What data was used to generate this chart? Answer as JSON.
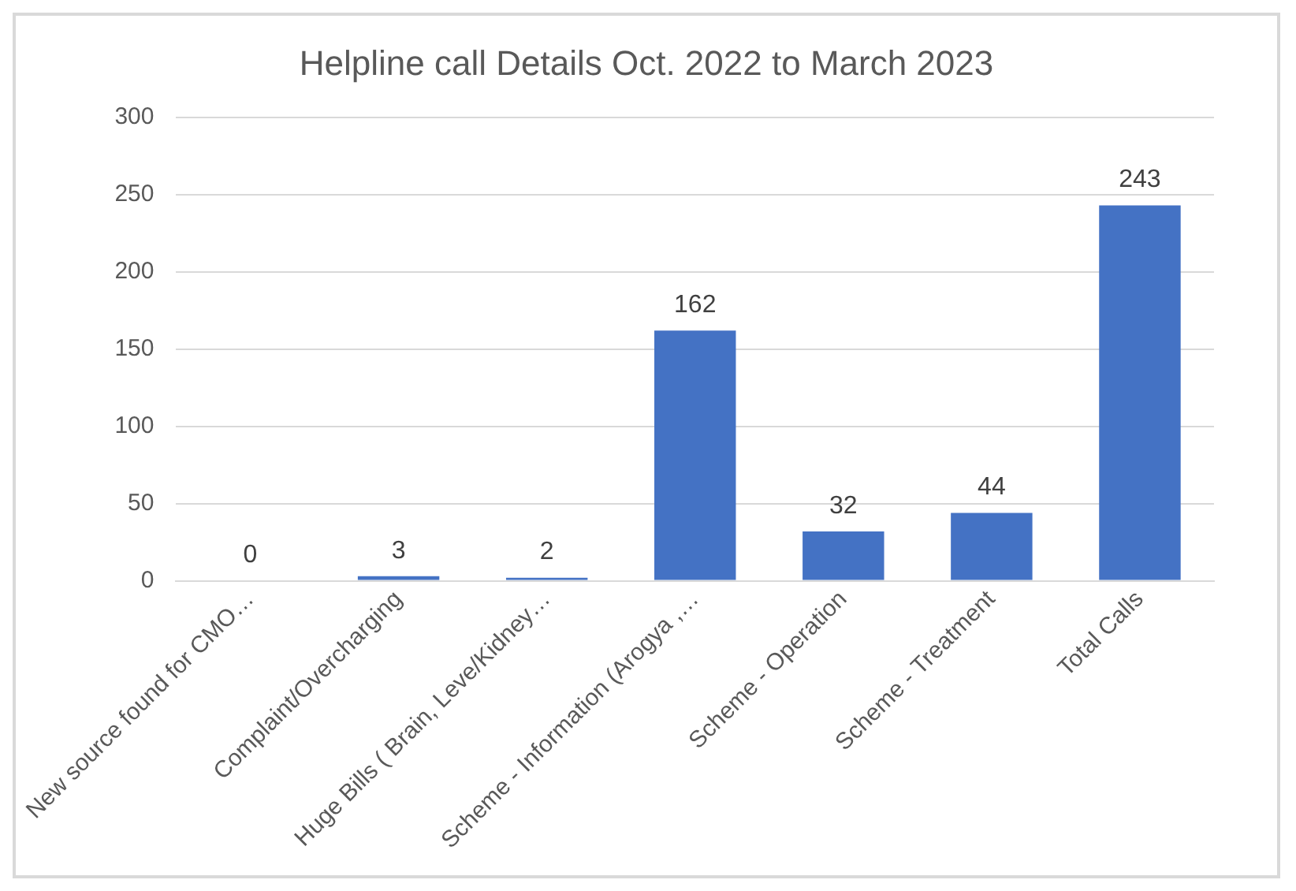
{
  "chart_data": {
    "type": "bar",
    "title": "Helpline call Details Oct. 2022 to March 2023",
    "categories": [
      "New source found for CMO…",
      "Complaint/Overcharging",
      "Huge Bills ( Brain, Leve/Kidney…",
      "Scheme - Information (Arogya ,…",
      "Scheme - Operation",
      "Scheme - Treatment",
      "Total Calls"
    ],
    "values": [
      0,
      3,
      2,
      162,
      32,
      44,
      243
    ],
    "color": "#4472c4",
    "ylim": [
      0,
      300
    ],
    "yticks": [
      0,
      50,
      100,
      150,
      200,
      250,
      300
    ],
    "grid": "y",
    "data_labels": true,
    "legend": false
  }
}
